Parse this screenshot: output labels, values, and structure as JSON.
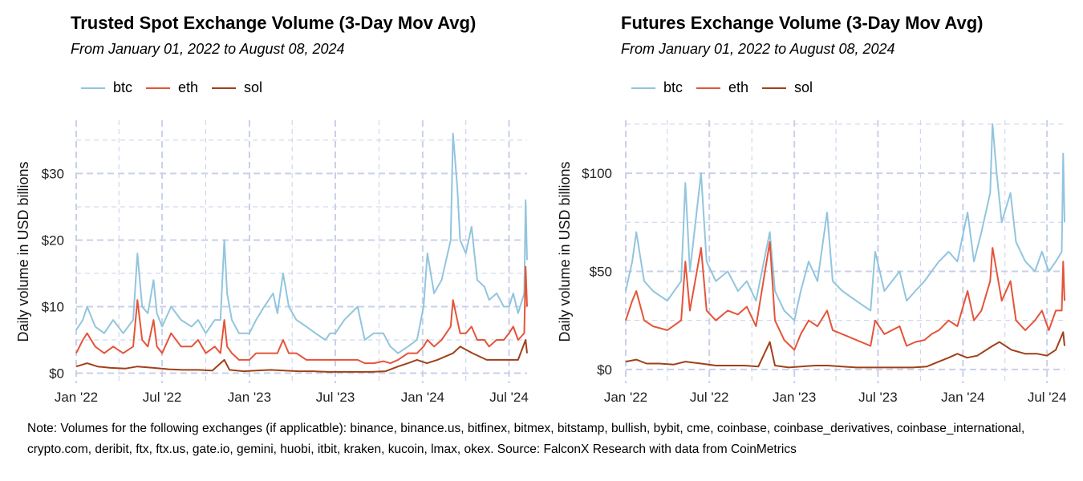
{
  "note": "Note: Volumes for the following exchanges (if applicatble): binance, binance.us, bitfinex, bitmex, bitstamp, bullish, bybit, cme, coinbase, coinbase_derivatives, coinbase_international, crypto.com, deribit, ftx, ftx.us, gate.io, gemini, huobi, itbit, kraken, kucoin, lmax, okex. Source: FalconX Research with data from CoinMetrics",
  "colors": {
    "btc": "#92c5de",
    "eth": "#e5543a",
    "sol": "#a0401a",
    "grid": "#c9d0ea"
  },
  "chart_data": [
    {
      "type": "line",
      "title": "Trusted Spot Exchange Volume (3-Day Mov Avg)",
      "subtitle": "From January 01, 2022 to August 08, 2024",
      "ylabel": "Daily volume in USD billions",
      "xlabel": "",
      "ylim": [
        -1.5,
        38
      ],
      "yticks": [
        0,
        10,
        20,
        30
      ],
      "ytick_labels": [
        "$0",
        "$10",
        "$20",
        "$30"
      ],
      "x_start": "2022-01-01",
      "x_end": "2024-08-08",
      "xticks": [
        "2022-01-01",
        "2022-07-01",
        "2023-01-01",
        "2023-07-01",
        "2024-01-01",
        "2024-07-01"
      ],
      "xtick_labels": [
        "Jan '22",
        "Jul '22",
        "Jan '23",
        "Jul '23",
        "Jan '24",
        "Jul '24"
      ],
      "legend": [
        "btc",
        "eth",
        "sol"
      ],
      "series": [
        {
          "name": "btc",
          "x": [
            "2022-01-01",
            "2022-01-15",
            "2022-01-24",
            "2022-02-10",
            "2022-03-01",
            "2022-03-20",
            "2022-04-10",
            "2022-05-01",
            "2022-05-10",
            "2022-05-20",
            "2022-06-01",
            "2022-06-13",
            "2022-06-20",
            "2022-07-01",
            "2022-07-20",
            "2022-08-10",
            "2022-09-01",
            "2022-09-15",
            "2022-10-01",
            "2022-10-20",
            "2022-11-01",
            "2022-11-09",
            "2022-11-15",
            "2022-11-25",
            "2022-12-10",
            "2023-01-01",
            "2023-01-15",
            "2023-02-01",
            "2023-02-20",
            "2023-03-01",
            "2023-03-13",
            "2023-03-25",
            "2023-04-10",
            "2023-05-01",
            "2023-05-20",
            "2023-06-10",
            "2023-06-20",
            "2023-07-01",
            "2023-07-20",
            "2023-08-17",
            "2023-09-01",
            "2023-09-20",
            "2023-10-10",
            "2023-10-25",
            "2023-11-10",
            "2023-12-01",
            "2023-12-20",
            "2024-01-03",
            "2024-01-11",
            "2024-01-25",
            "2024-02-10",
            "2024-02-29",
            "2024-03-05",
            "2024-03-14",
            "2024-03-20",
            "2024-04-01",
            "2024-04-13",
            "2024-04-25",
            "2024-05-10",
            "2024-05-20",
            "2024-06-05",
            "2024-06-20",
            "2024-07-01",
            "2024-07-10",
            "2024-07-20",
            "2024-08-02",
            "2024-08-05",
            "2024-08-08"
          ],
          "values": [
            6.5,
            8,
            10,
            7,
            6,
            8,
            6,
            8,
            18,
            10,
            9,
            14,
            9,
            7,
            10,
            8,
            7,
            8,
            6,
            8,
            8,
            20,
            12,
            8,
            6,
            6,
            8,
            10,
            12,
            9,
            15,
            10,
            8,
            7,
            6,
            5,
            6,
            6,
            8,
            10,
            5,
            6,
            6,
            4,
            3,
            4,
            5,
            10,
            18,
            12,
            14,
            20,
            36,
            28,
            20,
            18,
            22,
            14,
            13,
            11,
            12,
            10,
            10,
            12,
            9,
            12,
            26,
            17
          ]
        },
        {
          "name": "eth",
          "x": [
            "2022-01-01",
            "2022-01-15",
            "2022-01-24",
            "2022-02-10",
            "2022-03-01",
            "2022-03-20",
            "2022-04-10",
            "2022-05-01",
            "2022-05-10",
            "2022-05-20",
            "2022-06-01",
            "2022-06-13",
            "2022-06-20",
            "2022-07-01",
            "2022-07-20",
            "2022-08-10",
            "2022-09-01",
            "2022-09-15",
            "2022-10-01",
            "2022-10-20",
            "2022-11-01",
            "2022-11-09",
            "2022-11-15",
            "2022-11-25",
            "2022-12-10",
            "2023-01-01",
            "2023-01-15",
            "2023-02-01",
            "2023-02-20",
            "2023-03-01",
            "2023-03-13",
            "2023-03-25",
            "2023-04-10",
            "2023-05-01",
            "2023-05-20",
            "2023-06-10",
            "2023-06-20",
            "2023-07-01",
            "2023-07-20",
            "2023-08-17",
            "2023-09-01",
            "2023-09-20",
            "2023-10-10",
            "2023-10-25",
            "2023-11-10",
            "2023-12-01",
            "2023-12-20",
            "2024-01-03",
            "2024-01-11",
            "2024-01-25",
            "2024-02-10",
            "2024-02-29",
            "2024-03-05",
            "2024-03-14",
            "2024-03-20",
            "2024-04-01",
            "2024-04-13",
            "2024-04-25",
            "2024-05-10",
            "2024-05-20",
            "2024-06-05",
            "2024-06-20",
            "2024-07-01",
            "2024-07-10",
            "2024-07-20",
            "2024-08-02",
            "2024-08-05",
            "2024-08-08"
          ],
          "values": [
            3,
            5,
            6,
            4,
            3,
            4,
            3,
            4,
            11,
            5,
            4,
            8,
            4,
            3,
            6,
            4,
            4,
            5,
            3,
            4,
            3,
            8,
            4,
            3,
            2,
            2,
            3,
            3,
            3,
            3,
            5,
            3,
            3,
            2,
            2,
            2,
            2,
            2,
            2,
            2,
            1.5,
            1.5,
            1.8,
            1.5,
            2,
            3,
            3,
            4,
            5,
            4,
            5,
            7,
            11,
            8,
            6,
            6,
            7,
            5,
            5,
            4,
            5,
            5,
            6,
            7,
            5,
            6,
            16,
            10
          ]
        },
        {
          "name": "sol",
          "x": [
            "2022-01-01",
            "2022-01-24",
            "2022-02-15",
            "2022-03-15",
            "2022-04-15",
            "2022-05-10",
            "2022-06-13",
            "2022-07-15",
            "2022-08-15",
            "2022-09-15",
            "2022-10-15",
            "2022-11-09",
            "2022-11-20",
            "2022-12-20",
            "2023-01-15",
            "2023-02-15",
            "2023-03-15",
            "2023-04-15",
            "2023-05-15",
            "2023-06-15",
            "2023-07-15",
            "2023-08-15",
            "2023-09-15",
            "2023-10-15",
            "2023-11-10",
            "2023-12-01",
            "2023-12-20",
            "2024-01-10",
            "2024-02-01",
            "2024-03-05",
            "2024-03-20",
            "2024-04-15",
            "2024-05-15",
            "2024-06-10",
            "2024-07-01",
            "2024-07-20",
            "2024-08-05",
            "2024-08-08"
          ],
          "values": [
            1,
            1.5,
            1,
            0.8,
            0.7,
            1,
            0.8,
            0.6,
            0.5,
            0.5,
            0.4,
            2,
            0.5,
            0.3,
            0.4,
            0.5,
            0.4,
            0.3,
            0.3,
            0.2,
            0.2,
            0.2,
            0.2,
            0.3,
            1,
            1.5,
            2,
            1.5,
            2,
            3,
            4,
            3,
            2,
            2,
            2,
            2,
            5,
            3
          ]
        }
      ]
    },
    {
      "type": "line",
      "title": "Futures Exchange Volume (3-Day Mov Avg)",
      "subtitle": "From January 01, 2022 to August 08, 2024",
      "ylabel": "Daily volume in USD billions",
      "xlabel": "",
      "ylim": [
        -7,
        127
      ],
      "yticks": [
        0,
        50,
        100
      ],
      "ytick_labels": [
        "$0",
        "$50",
        "$100"
      ],
      "x_start": "2022-01-01",
      "x_end": "2024-08-08",
      "xticks": [
        "2022-01-01",
        "2022-07-01",
        "2023-01-01",
        "2023-07-01",
        "2024-01-01",
        "2024-07-01"
      ],
      "xtick_labels": [
        "Jan '22",
        "Jul '22",
        "Jan '23",
        "Jul '23",
        "Jan '24",
        "Jul '24"
      ],
      "legend": [
        "btc",
        "eth",
        "sol"
      ],
      "series": [
        {
          "name": "btc",
          "x": [
            "2022-01-01",
            "2022-01-15",
            "2022-01-24",
            "2022-02-10",
            "2022-03-01",
            "2022-04-01",
            "2022-05-01",
            "2022-05-10",
            "2022-05-20",
            "2022-06-13",
            "2022-06-25",
            "2022-07-15",
            "2022-08-10",
            "2022-09-01",
            "2022-09-20",
            "2022-10-10",
            "2022-11-09",
            "2022-11-20",
            "2022-12-10",
            "2023-01-01",
            "2023-01-15",
            "2023-02-01",
            "2023-02-20",
            "2023-03-13",
            "2023-03-25",
            "2023-04-15",
            "2023-05-15",
            "2023-06-15",
            "2023-06-25",
            "2023-07-15",
            "2023-08-17",
            "2023-09-01",
            "2023-09-20",
            "2023-10-10",
            "2023-10-25",
            "2023-11-10",
            "2023-12-01",
            "2023-12-20",
            "2024-01-11",
            "2024-01-25",
            "2024-02-10",
            "2024-02-29",
            "2024-03-05",
            "2024-03-14",
            "2024-03-25",
            "2024-04-13",
            "2024-04-25",
            "2024-05-15",
            "2024-06-05",
            "2024-06-20",
            "2024-07-05",
            "2024-07-20",
            "2024-08-02",
            "2024-08-05",
            "2024-08-08"
          ],
          "values": [
            40,
            55,
            70,
            45,
            40,
            35,
            45,
            95,
            50,
            100,
            55,
            45,
            50,
            40,
            45,
            35,
            70,
            40,
            30,
            25,
            40,
            55,
            45,
            80,
            45,
            40,
            35,
            30,
            60,
            40,
            50,
            35,
            40,
            45,
            50,
            55,
            60,
            55,
            80,
            55,
            70,
            90,
            125,
            100,
            75,
            90,
            65,
            55,
            50,
            60,
            50,
            55,
            60,
            110,
            75
          ]
        },
        {
          "name": "eth",
          "x": [
            "2022-01-01",
            "2022-01-15",
            "2022-01-24",
            "2022-02-10",
            "2022-03-01",
            "2022-04-01",
            "2022-05-01",
            "2022-05-10",
            "2022-05-20",
            "2022-06-13",
            "2022-06-25",
            "2022-07-15",
            "2022-08-10",
            "2022-09-01",
            "2022-09-20",
            "2022-10-10",
            "2022-11-09",
            "2022-11-20",
            "2022-12-10",
            "2023-01-01",
            "2023-01-15",
            "2023-02-01",
            "2023-02-20",
            "2023-03-13",
            "2023-03-25",
            "2023-04-15",
            "2023-05-15",
            "2023-06-15",
            "2023-06-25",
            "2023-07-15",
            "2023-08-17",
            "2023-09-01",
            "2023-09-20",
            "2023-10-10",
            "2023-10-25",
            "2023-11-10",
            "2023-12-01",
            "2023-12-20",
            "2024-01-11",
            "2024-01-25",
            "2024-02-10",
            "2024-02-29",
            "2024-03-05",
            "2024-03-14",
            "2024-03-25",
            "2024-04-13",
            "2024-04-25",
            "2024-05-15",
            "2024-06-05",
            "2024-06-20",
            "2024-07-05",
            "2024-07-20",
            "2024-08-02",
            "2024-08-05",
            "2024-08-08"
          ],
          "values": [
            25,
            35,
            40,
            25,
            22,
            20,
            25,
            55,
            30,
            62,
            30,
            25,
            30,
            28,
            32,
            22,
            65,
            25,
            15,
            10,
            18,
            25,
            22,
            30,
            20,
            18,
            15,
            12,
            25,
            18,
            22,
            12,
            14,
            15,
            18,
            20,
            25,
            22,
            40,
            25,
            30,
            45,
            62,
            50,
            35,
            45,
            25,
            20,
            25,
            30,
            20,
            30,
            30,
            55,
            35
          ]
        },
        {
          "name": "sol",
          "x": [
            "2022-01-01",
            "2022-01-24",
            "2022-02-15",
            "2022-03-15",
            "2022-04-15",
            "2022-05-10",
            "2022-06-13",
            "2022-07-15",
            "2022-08-15",
            "2022-09-15",
            "2022-10-15",
            "2022-11-09",
            "2022-11-20",
            "2022-12-20",
            "2023-01-15",
            "2023-02-15",
            "2023-03-15",
            "2023-04-15",
            "2023-05-15",
            "2023-06-15",
            "2023-07-15",
            "2023-08-15",
            "2023-09-15",
            "2023-10-15",
            "2023-11-10",
            "2023-12-01",
            "2023-12-20",
            "2024-01-10",
            "2024-02-01",
            "2024-03-05",
            "2024-03-20",
            "2024-04-15",
            "2024-05-15",
            "2024-06-10",
            "2024-07-01",
            "2024-07-20",
            "2024-08-05",
            "2024-08-08"
          ],
          "values": [
            4,
            5,
            3,
            3,
            2.5,
            4,
            3,
            2,
            2,
            2,
            1.5,
            14,
            2,
            1,
            1.5,
            2,
            2,
            1.5,
            1,
            1,
            1,
            1,
            1,
            1.5,
            4,
            6,
            8,
            6,
            7,
            12,
            14,
            10,
            8,
            8,
            7,
            10,
            19,
            12
          ]
        }
      ]
    }
  ]
}
